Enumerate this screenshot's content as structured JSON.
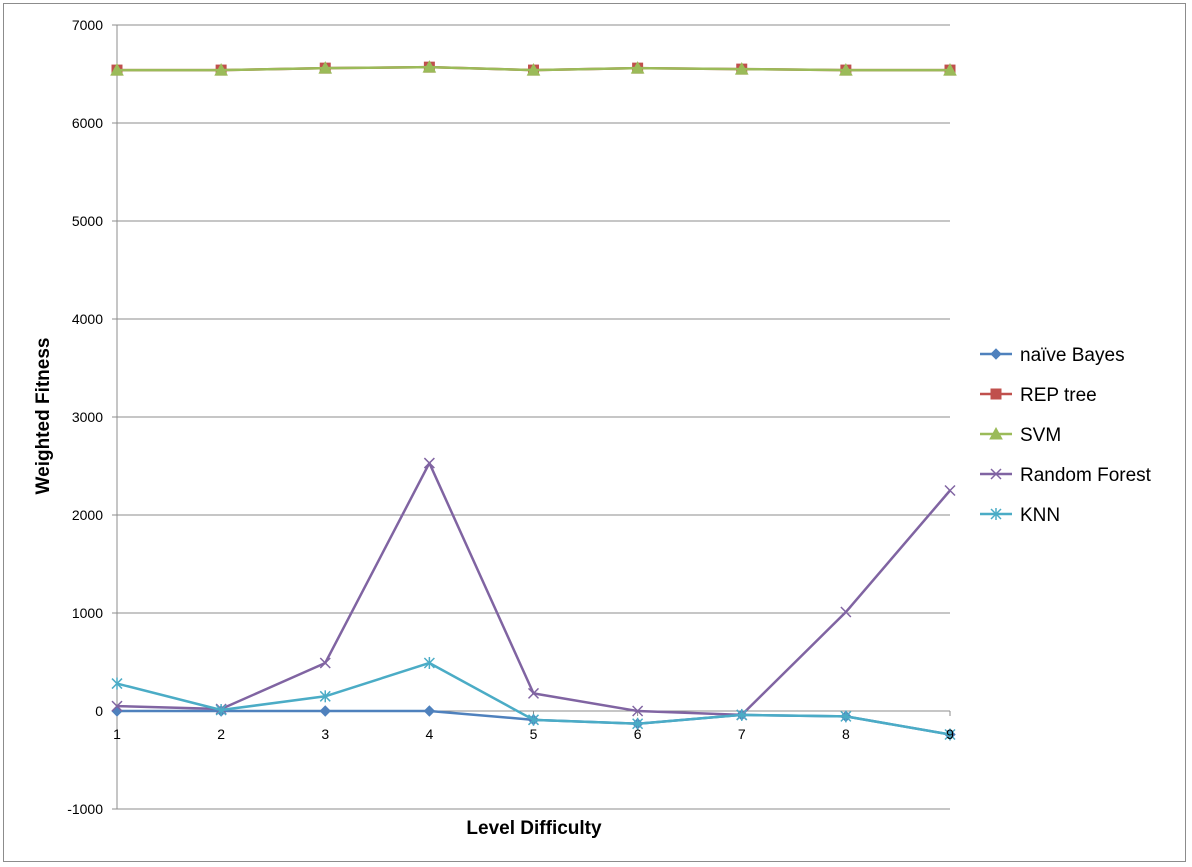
{
  "chart_data": {
    "type": "line",
    "title": "",
    "xlabel": "Level Difficulty",
    "ylabel": "Weighted Fitness",
    "categories": [
      "1",
      "2",
      "3",
      "4",
      "5",
      "6",
      "7",
      "8",
      "9"
    ],
    "ylim": [
      -1000,
      7000
    ],
    "yticks": [
      -1000,
      0,
      1000,
      2000,
      3000,
      4000,
      5000,
      6000,
      7000
    ],
    "grid": true,
    "legend_position": "right",
    "series": [
      {
        "name": "naïve Bayes",
        "color": "#4f81bd",
        "marker": "diamond",
        "values": [
          0,
          0,
          0,
          0,
          -90,
          -130,
          -40,
          -55,
          -240
        ]
      },
      {
        "name": "REP tree",
        "color": "#c0504d",
        "marker": "square",
        "values": [
          6540,
          6540,
          6560,
          6570,
          6540,
          6560,
          6550,
          6540,
          6540
        ]
      },
      {
        "name": "SVM",
        "color": "#9bbb59",
        "marker": "triangle",
        "values": [
          6540,
          6540,
          6560,
          6570,
          6540,
          6560,
          6550,
          6540,
          6540
        ]
      },
      {
        "name": "Random Forest",
        "color": "#8064a2",
        "marker": "x",
        "values": [
          50,
          20,
          490,
          2530,
          180,
          0,
          -40,
          1010,
          2250
        ]
      },
      {
        "name": "KNN",
        "color": "#4bacc6",
        "marker": "star",
        "values": [
          280,
          10,
          150,
          490,
          -90,
          -130,
          -40,
          -55,
          -240
        ]
      }
    ]
  }
}
